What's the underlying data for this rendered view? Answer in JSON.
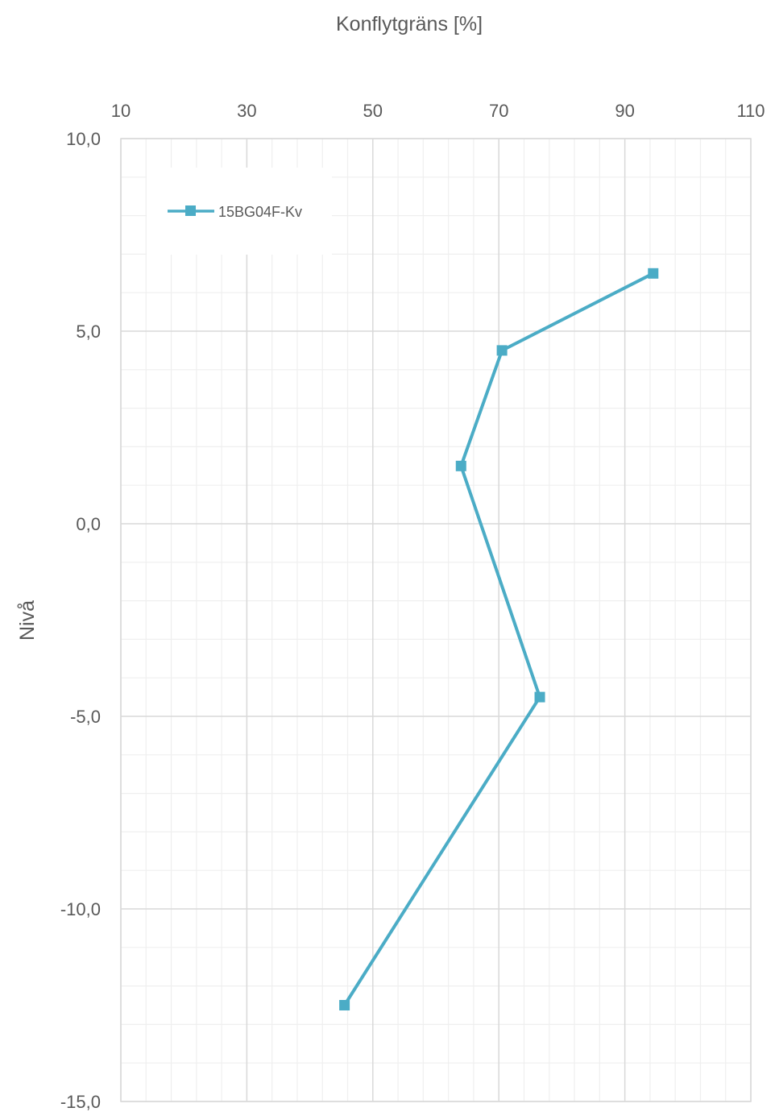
{
  "chart_data": {
    "type": "line",
    "title": "",
    "xlabel": "Konflytgräns [%]",
    "ylabel": "Nivå",
    "xlim": [
      10,
      110
    ],
    "ylim": [
      -15,
      10
    ],
    "x_ticks": [
      10,
      30,
      50,
      70,
      90,
      110
    ],
    "y_ticks": [
      10,
      5,
      0,
      -5,
      -10,
      -15
    ],
    "x_tick_labels": [
      "10",
      "30",
      "50",
      "70",
      "90",
      "110"
    ],
    "y_tick_labels": [
      "10,0",
      "5,0",
      "0,0",
      "-5,0",
      "-10,0",
      "-15,0"
    ],
    "x_axis_position": "top",
    "grid": true,
    "minor_grid": true,
    "legend_position": "top-left",
    "series": [
      {
        "name": "15BG04F-Kv",
        "color": "#4bacc6",
        "marker": "square",
        "points": [
          {
            "x": 94.5,
            "y": 6.5
          },
          {
            "x": 70.5,
            "y": 4.5
          },
          {
            "x": 64.0,
            "y": 1.5
          },
          {
            "x": 76.5,
            "y": -4.5
          },
          {
            "x": 45.5,
            "y": -12.5
          }
        ]
      }
    ]
  }
}
